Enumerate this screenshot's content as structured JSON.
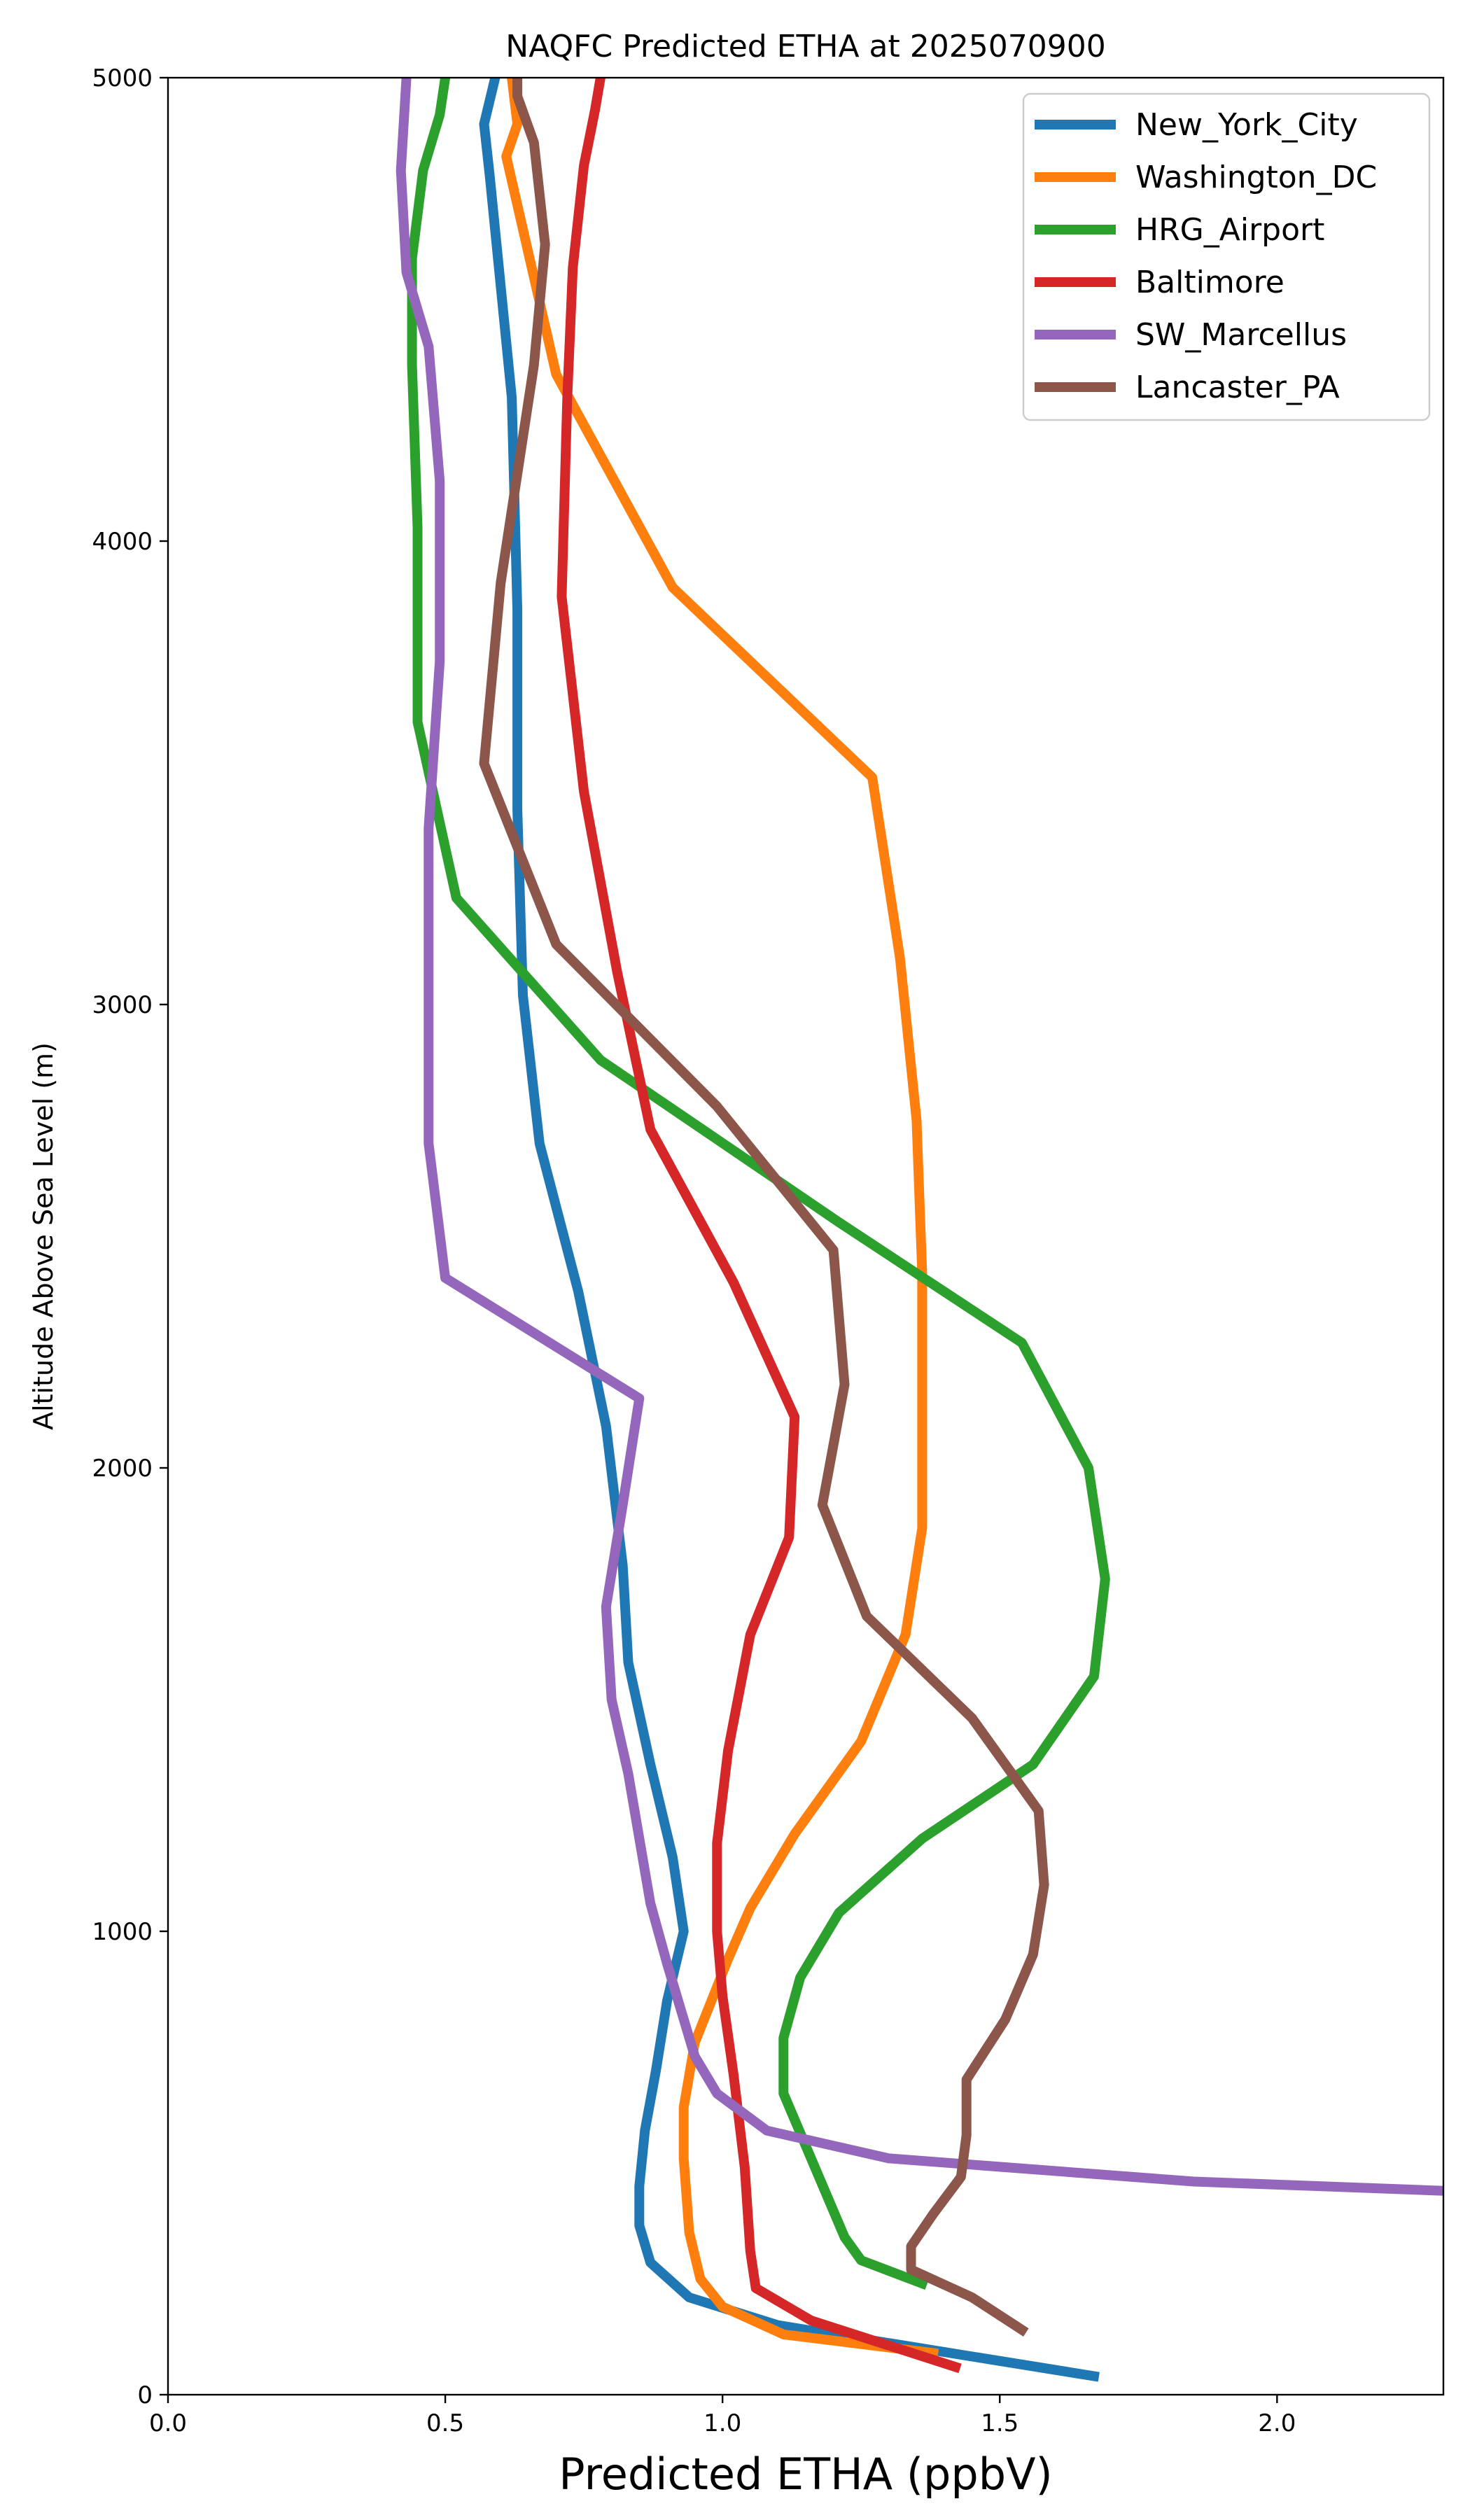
{
  "chart_data": {
    "type": "line",
    "title": "NAQFC Predicted ETHA at 2025070900",
    "xlabel": "Predicted ETHA (ppbV)",
    "ylabel": "Altitude Above Sea Level (m)",
    "xlim": [
      0.0,
      2.3
    ],
    "ylim": [
      0,
      5000
    ],
    "xticks": [
      0.0,
      0.5,
      1.0,
      1.5,
      2.0
    ],
    "xtick_labels": [
      "0.0",
      "0.5",
      "1.0",
      "1.5",
      "2.0"
    ],
    "yticks": [
      0,
      1000,
      2000,
      3000,
      4000,
      5000
    ],
    "ytick_labels": [
      "0",
      "1000",
      "2000",
      "3000",
      "4000",
      "5000"
    ],
    "grid": false,
    "legend_position": "top-right",
    "series": [
      {
        "name": "New_York_City",
        "color": "#1f77b4",
        "x": [
          1.67,
          1.1,
          0.94,
          0.87,
          0.85,
          0.85,
          0.86,
          0.88,
          0.9,
          0.93,
          0.91,
          0.87,
          0.83,
          0.82,
          0.79,
          0.74,
          0.67,
          0.64,
          0.63,
          0.63,
          0.62,
          0.58,
          0.57,
          0.59,
          0.59
        ],
        "y": [
          40,
          150,
          210,
          285,
          365,
          450,
          570,
          700,
          850,
          1000,
          1160,
          1360,
          1580,
          1790,
          2090,
          2380,
          2700,
          3020,
          3420,
          3850,
          4310,
          4790,
          4900,
          5000,
          5000
        ]
      },
      {
        "name": "Washington_DC",
        "color": "#ff7f0e",
        "x": [
          1.38,
          1.11,
          1.0,
          0.96,
          0.94,
          0.93,
          0.93,
          0.95,
          0.99,
          1.01,
          1.05,
          1.13,
          1.25,
          1.33,
          1.36,
          1.36,
          1.35,
          1.32,
          1.27,
          0.91,
          0.7,
          0.61,
          0.63,
          0.62
        ],
        "y": [
          90,
          130,
          190,
          250,
          350,
          510,
          620,
          760,
          880,
          940,
          1050,
          1210,
          1410,
          1640,
          1870,
          2420,
          2750,
          3100,
          3490,
          3900,
          4360,
          4830,
          4900,
          5000
        ]
      },
      {
        "name": "HRG_Airport",
        "color": "#2ca02c",
        "x": [
          1.36,
          1.25,
          1.22,
          1.11,
          1.11,
          1.14,
          1.21,
          1.36,
          1.56,
          1.67,
          1.69,
          1.66,
          1.54,
          1.21,
          0.78,
          0.52,
          0.45,
          0.45,
          0.44,
          0.44,
          0.46,
          0.49,
          0.5
        ],
        "y": [
          240,
          290,
          340,
          650,
          770,
          900,
          1040,
          1200,
          1360,
          1550,
          1760,
          2000,
          2270,
          2530,
          2880,
          3230,
          3610,
          4030,
          4380,
          4610,
          4800,
          4920,
          5000
        ]
      },
      {
        "name": "Baltimore",
        "color": "#d62728",
        "x": [
          1.42,
          1.16,
          1.06,
          1.05,
          1.04,
          1.02,
          1.0,
          0.99,
          0.99,
          1.01,
          1.05,
          1.12,
          1.13,
          1.02,
          0.87,
          0.81,
          0.75,
          0.71,
          0.72,
          0.73,
          0.75,
          0.77,
          0.78
        ],
        "y": [
          60,
          160,
          230,
          310,
          490,
          690,
          860,
          1000,
          1190,
          1390,
          1640,
          1850,
          2110,
          2400,
          2730,
          3070,
          3460,
          3880,
          4310,
          4590,
          4810,
          4930,
          5000
        ]
      },
      {
        "name": "SW_Marcellus",
        "color": "#9467bd",
        "x": [
          2.3,
          1.85,
          1.3,
          1.08,
          0.99,
          0.95,
          0.9,
          0.87,
          0.83,
          0.8,
          0.79,
          0.82,
          0.85,
          0.5,
          0.47,
          0.47,
          0.47,
          0.49,
          0.49,
          0.47,
          0.43,
          0.42,
          0.43
        ],
        "y": [
          440,
          460,
          510,
          570,
          650,
          730,
          930,
          1060,
          1340,
          1500,
          1700,
          1920,
          2150,
          2410,
          2700,
          3020,
          3380,
          3740,
          4130,
          4420,
          4580,
          4800,
          5000
        ]
      },
      {
        "name": "Lancaster_PA",
        "color": "#8c564b",
        "x": [
          1.54,
          1.45,
          1.34,
          1.34,
          1.38,
          1.43,
          1.44,
          1.44,
          1.51,
          1.56,
          1.58,
          1.57,
          1.45,
          1.26,
          1.18,
          1.22,
          1.2,
          0.99,
          0.7,
          0.57,
          0.6,
          0.66,
          0.68,
          0.66,
          0.63,
          0.63
        ],
        "y": [
          140,
          210,
          270,
          320,
          390,
          470,
          560,
          680,
          810,
          950,
          1100,
          1260,
          1460,
          1680,
          1920,
          2180,
          2470,
          2780,
          3130,
          3520,
          3910,
          4380,
          4640,
          4860,
          4960,
          5000
        ]
      }
    ]
  }
}
